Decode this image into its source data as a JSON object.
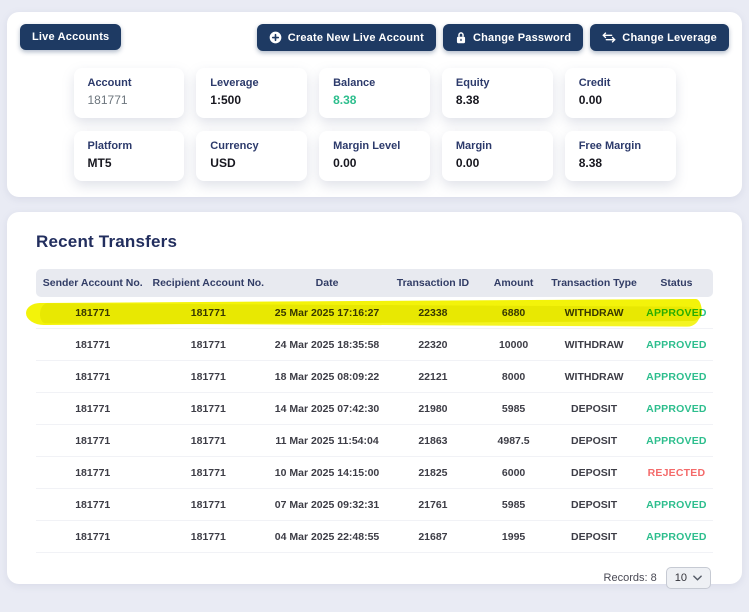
{
  "topbar": {
    "live_accounts_label": "Live Accounts",
    "actions": [
      {
        "label": "Create New Live Account",
        "icon": "plus-circle-icon"
      },
      {
        "label": "Change Password",
        "icon": "lock-icon"
      },
      {
        "label": "Change Leverage",
        "icon": "exchange-icon"
      }
    ]
  },
  "account_summary": {
    "cards": [
      {
        "label": "Account",
        "value": "181771",
        "style": "muted"
      },
      {
        "label": "Leverage",
        "value": "1:500",
        "style": "dark"
      },
      {
        "label": "Balance",
        "value": "8.38",
        "style": "green"
      },
      {
        "label": "Equity",
        "value": "8.38",
        "style": "dark"
      },
      {
        "label": "Credit",
        "value": "0.00",
        "style": "dark"
      },
      {
        "label": "Platform",
        "value": "MT5",
        "style": "dark"
      },
      {
        "label": "Currency",
        "value": "USD",
        "style": "dark"
      },
      {
        "label": "Margin Level",
        "value": "0.00",
        "style": "dark"
      },
      {
        "label": "Margin",
        "value": "0.00",
        "style": "dark"
      },
      {
        "label": "Free Margin",
        "value": "8.38",
        "style": "dark"
      }
    ]
  },
  "transfers": {
    "title": "Recent Transfers",
    "columns": {
      "sender": "Sender Account No.",
      "recipient": "Recipient Account No.",
      "date": "Date",
      "txid": "Transaction ID",
      "amount": "Amount",
      "type": "Transaction Type",
      "status": "Status"
    },
    "rows": [
      {
        "sender": "181771",
        "recipient": "181771",
        "date": "25 Mar 2025 17:16:27",
        "txid": "22338",
        "amount": "6880",
        "type": "WITHDRAW",
        "status": "APPROVED",
        "highlighted": true
      },
      {
        "sender": "181771",
        "recipient": "181771",
        "date": "24 Mar 2025 18:35:58",
        "txid": "22320",
        "amount": "10000",
        "type": "WITHDRAW",
        "status": "APPROVED"
      },
      {
        "sender": "181771",
        "recipient": "181771",
        "date": "18 Mar 2025 08:09:22",
        "txid": "22121",
        "amount": "8000",
        "type": "WITHDRAW",
        "status": "APPROVED"
      },
      {
        "sender": "181771",
        "recipient": "181771",
        "date": "14 Mar 2025 07:42:30",
        "txid": "21980",
        "amount": "5985",
        "type": "DEPOSIT",
        "status": "APPROVED"
      },
      {
        "sender": "181771",
        "recipient": "181771",
        "date": "11 Mar 2025 11:54:04",
        "txid": "21863",
        "amount": "4987.5",
        "type": "DEPOSIT",
        "status": "APPROVED"
      },
      {
        "sender": "181771",
        "recipient": "181771",
        "date": "10 Mar 2025 14:15:00",
        "txid": "21825",
        "amount": "6000",
        "type": "DEPOSIT",
        "status": "REJECTED"
      },
      {
        "sender": "181771",
        "recipient": "181771",
        "date": "07 Mar 2025 09:32:31",
        "txid": "21761",
        "amount": "5985",
        "type": "DEPOSIT",
        "status": "APPROVED"
      },
      {
        "sender": "181771",
        "recipient": "181771",
        "date": "04 Mar 2025 22:48:55",
        "txid": "21687",
        "amount": "1995",
        "type": "DEPOSIT",
        "status": "APPROVED"
      }
    ],
    "footer": {
      "records_label": "Records: 8",
      "page_size": "10",
      "page_size_icon": "chevron-down-icon"
    }
  },
  "colors": {
    "navy": "#1e3a63",
    "approved_green": "#2dbe8d",
    "rejected_red": "#f46a6a",
    "highlight_yellow": "#f3f30a",
    "page_background": "#e9ebf4"
  }
}
